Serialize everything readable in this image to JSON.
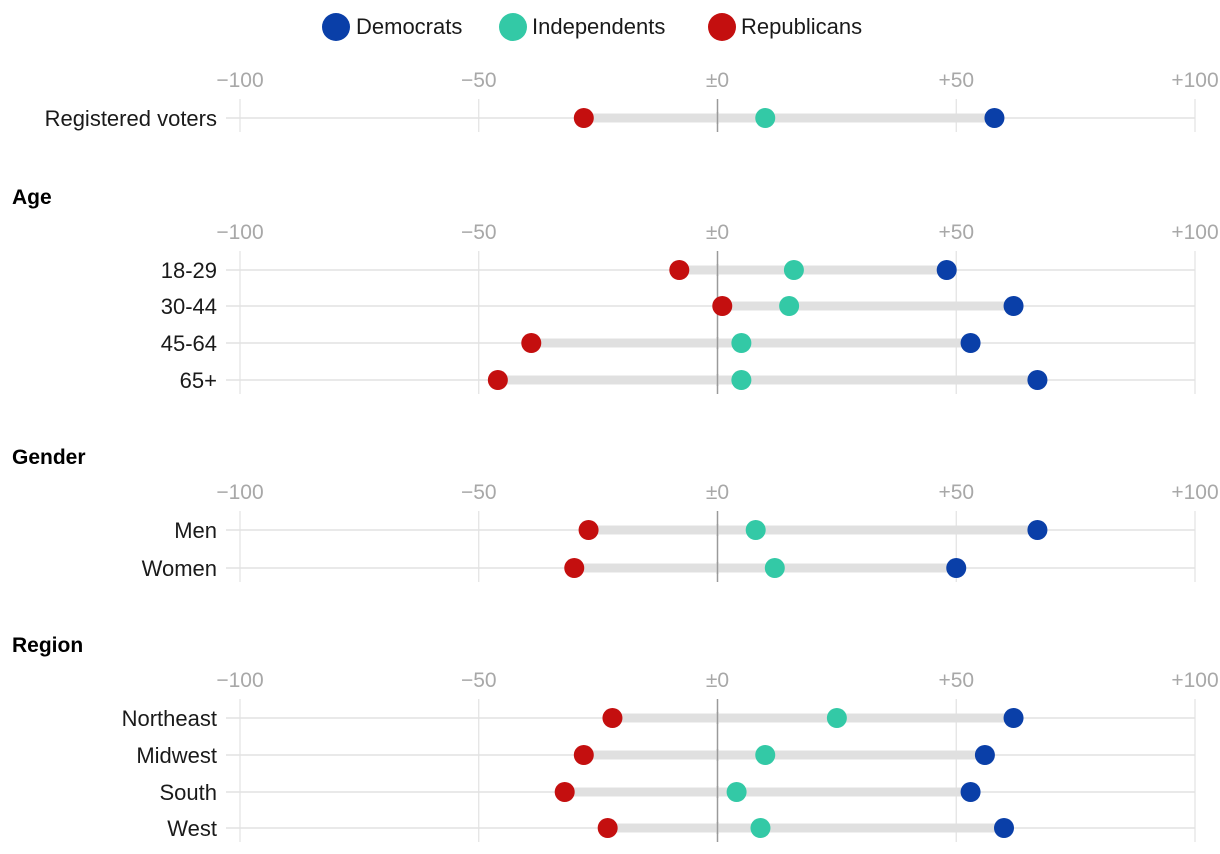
{
  "chart_data": {
    "type": "dot-range",
    "xlim": [
      -100,
      100
    ],
    "xticks": [
      -100,
      -50,
      0,
      50,
      100
    ],
    "tick_labels": [
      "−100",
      "−50",
      "±0",
      "+50",
      "+100"
    ],
    "legend": [
      {
        "name": "Democrats",
        "color": "#0a3fa8"
      },
      {
        "name": "Independents",
        "color": "#33c9a6"
      },
      {
        "name": "Republicans",
        "color": "#c40f0f"
      }
    ],
    "sections": [
      {
        "title": "",
        "rows": [
          {
            "label": "Registered voters",
            "democrats": 58,
            "independents": 10,
            "republicans": -28
          }
        ]
      },
      {
        "title": "Age",
        "rows": [
          {
            "label": "18-29",
            "democrats": 48,
            "independents": 16,
            "republicans": -8
          },
          {
            "label": "30-44",
            "democrats": 62,
            "independents": 15,
            "republicans": 1
          },
          {
            "label": "45-64",
            "democrats": 53,
            "independents": 5,
            "republicans": -39
          },
          {
            "label": "65+",
            "democrats": 67,
            "independents": 5,
            "republicans": -46
          }
        ]
      },
      {
        "title": "Gender",
        "rows": [
          {
            "label": "Men",
            "democrats": 67,
            "independents": 8,
            "republicans": -27
          },
          {
            "label": "Women",
            "democrats": 50,
            "independents": 12,
            "republicans": -30
          }
        ]
      },
      {
        "title": "Region",
        "rows": [
          {
            "label": "Northeast",
            "democrats": 62,
            "independents": 25,
            "republicans": -22
          },
          {
            "label": "Midwest",
            "democrats": 56,
            "independents": 10,
            "republicans": -28
          },
          {
            "label": "South",
            "democrats": 53,
            "independents": 4,
            "republicans": -32
          },
          {
            "label": "West",
            "democrats": 60,
            "independents": 9,
            "republicans": -23
          }
        ]
      }
    ]
  }
}
